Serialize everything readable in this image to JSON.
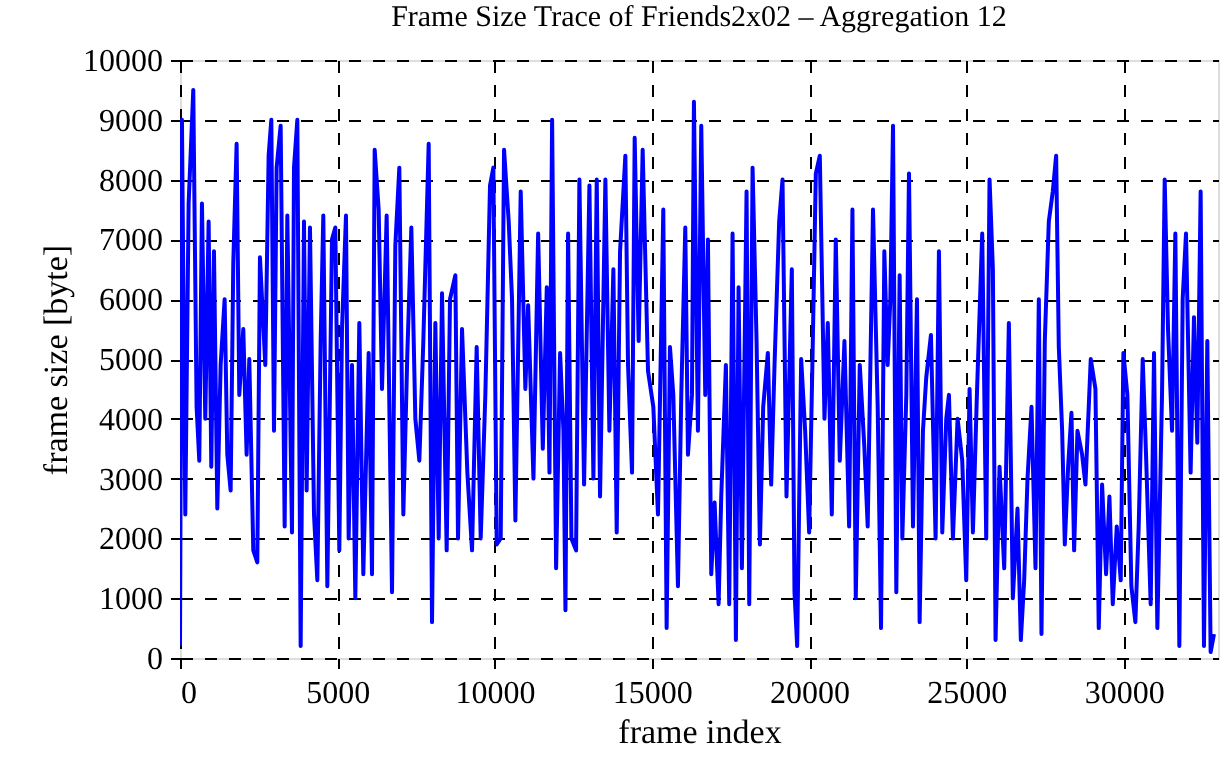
{
  "chart_data": {
    "type": "line",
    "title": "Frame Size Trace of Friends2x02 – Aggregation 12",
    "xlabel": "frame index",
    "ylabel": "frame size [byte]",
    "x": [
      0,
      62,
      168,
      274,
      422,
      528,
      613,
      698,
      804,
      910,
      995,
      1080,
      1186,
      1292,
      1419,
      1504,
      1610,
      1694,
      1800,
      1885,
      2012,
      2118,
      2203,
      2330,
      2458,
      2542,
      2712,
      2818,
      2903,
      2988,
      3072,
      3200,
      3327,
      3412,
      3560,
      3624,
      3730,
      3836,
      3942,
      4026,
      4132,
      4260,
      4366,
      4472,
      4556,
      4684,
      4832,
      4938,
      5065,
      5150,
      5277,
      5362,
      5468,
      5574,
      5701,
      5828,
      5998,
      6104,
      6189,
      6316,
      6422,
      6570,
      6740,
      6846,
      6973,
      7100,
      7228,
      7355,
      7482,
      7609,
      7736,
      7906,
      8012,
      8118,
      8224,
      8330,
      8478,
      8584,
      8754,
      8839,
      8966,
      9136,
      9284,
      9432,
      9560,
      9708,
      9856,
      9962,
      10068,
      10196,
      10302,
      10450,
      10556,
      10662,
      10832,
      10980,
      11068,
      11237,
      11386,
      11534,
      11661,
      11746,
      11830,
      11957,
      12084,
      12190,
      12254,
      12338,
      12444,
      12592,
      12698,
      12846,
      13016,
      13143,
      13249,
      13354,
      13524,
      13651,
      13778,
      13884,
      13990,
      14159,
      14244,
      14371,
      14455,
      14582,
      14709,
      14879,
      15048,
      15196,
      15365,
      15471,
      15577,
      15683,
      15831,
      15937,
      16064,
      16149,
      16276,
      16339,
      16466,
      16572,
      16699,
      16784,
      16890,
      16996,
      17123,
      17207,
      17355,
      17461,
      17567,
      17673,
      17758,
      17864,
      18012,
      18097,
      18203,
      18330,
      18436,
      18541,
      18689,
      18795,
      18901,
      19049,
      19155,
      19282,
      19451,
      19536,
      19621,
      19748,
      19875,
      20002,
      20108,
      20214,
      20341,
      20489,
      20595,
      20722,
      20849,
      20976,
      21124,
      21273,
      21378,
      21484,
      21611,
      21759,
      21863,
      22032,
      22181,
      22287,
      22392,
      22498,
      22583,
      22668,
      22773,
      22879,
      22964,
      23091,
      23176,
      23303,
      23430,
      23514,
      23620,
      23726,
      23874,
      24022,
      24128,
      24234,
      24361,
      24446,
      24573,
      24721,
      24869,
      24996,
      25102,
      25208,
      25335,
      25504,
      25631,
      25737,
      25843,
      25928,
      26055,
      26203,
      26351,
      26478,
      26626,
      26732,
      26838,
      26944,
      27071,
      27198,
      27304,
      27388,
      27494,
      27621,
      27748,
      27854,
      27939,
      28045,
      28129,
      28235,
      28341,
      28426,
      28532,
      28680,
      28786,
      28955,
      29103,
      29209,
      29315,
      29442,
      29548,
      29654,
      29781,
      29908,
      29992,
      30119,
      30246,
      30373,
      30479,
      30606,
      30712,
      30860,
      30966,
      31072,
      31220,
      31305,
      31411,
      31539,
      31644,
      31771,
      31877,
      31983,
      32130,
      32236,
      32342,
      32448,
      32554,
      32660,
      32766,
      32872
    ],
    "series": [
      {
        "color": "#0000ff",
        "values": [
          200,
          9000,
          2400,
          7600,
          9500,
          4200,
          3300,
          7600,
          4000,
          7300,
          3200,
          6800,
          2500,
          4900,
          6000,
          3400,
          2800,
          6600,
          8600,
          4400,
          5500,
          3400,
          5000,
          1800,
          1600,
          6700,
          4900,
          8400,
          9000,
          3800,
          8200,
          8900,
          2200,
          7400,
          2100,
          8200,
          9000,
          200,
          7300,
          2800,
          7200,
          2400,
          1300,
          5300,
          7400,
          1200,
          7000,
          7200,
          1800,
          5500,
          7400,
          2000,
          4900,
          1000,
          5600,
          1400,
          5100,
          1400,
          8500,
          7500,
          4500,
          7400,
          1100,
          6900,
          8200,
          2400,
          5100,
          7200,
          4000,
          3300,
          5300,
          8600,
          600,
          5600,
          2000,
          6100,
          1800,
          6000,
          6400,
          2000,
          5500,
          3100,
          1800,
          5200,
          2000,
          4400,
          7900,
          8200,
          1900,
          2000,
          8500,
          7300,
          6000,
          2300,
          7800,
          4500,
          5900,
          3000,
          7100,
          3500,
          6200,
          3100,
          9000,
          1500,
          5100,
          3800,
          800,
          7100,
          2000,
          1800,
          8000,
          2900,
          7900,
          3000,
          8000,
          2700,
          8000,
          3800,
          6500,
          2100,
          6800,
          8400,
          4900,
          3100,
          8700,
          5300,
          8500,
          4800,
          4200,
          2400,
          7500,
          500,
          5200,
          4400,
          1200,
          4400,
          7200,
          3400,
          4400,
          9300,
          3800,
          8900,
          4400,
          7000,
          1400,
          2600,
          900,
          2700,
          4900,
          900,
          7100,
          300,
          6200,
          1500,
          7800,
          900,
          8200,
          5300,
          1900,
          4200,
          5100,
          2900,
          4900,
          7300,
          8000,
          2700,
          6500,
          1100,
          200,
          5000,
          3800,
          2100,
          5000,
          8100,
          8400,
          4000,
          5600,
          2400,
          7000,
          3300,
          5300,
          2200,
          7500,
          1000,
          4900,
          3500,
          2200,
          7500,
          4200,
          500,
          6800,
          4900,
          6000,
          8900,
          1100,
          6400,
          2000,
          4400,
          8100,
          2200,
          6000,
          600,
          3800,
          4700,
          5400,
          2000,
          6800,
          2100,
          4000,
          4400,
          2000,
          4000,
          3300,
          1300,
          4500,
          2100,
          4400,
          7100,
          2000,
          8000,
          6500,
          300,
          3200,
          1500,
          5600,
          1000,
          2500,
          300,
          1300,
          3000,
          4200,
          1500,
          6000,
          400,
          5300,
          7300,
          7800,
          8400,
          5200,
          3800,
          1900,
          3200,
          4100,
          1800,
          3800,
          3400,
          2900,
          5000,
          4500,
          500,
          2900,
          1400,
          2700,
          900,
          2200,
          1300,
          5100,
          4400,
          1200,
          600,
          2200,
          5000,
          3400,
          900,
          5100,
          500,
          4400,
          8000,
          5500,
          3800,
          7100,
          200,
          6000,
          7100,
          3100,
          5700,
          3600,
          7800,
          200,
          5300,
          100,
          400
        ]
      }
    ],
    "xlim": [
      0,
      33000
    ],
    "ylim": [
      0,
      10000
    ],
    "xticks": [
      0,
      5000,
      10000,
      15000,
      20000,
      25000,
      30000
    ],
    "yticks": [
      0,
      1000,
      2000,
      3000,
      4000,
      5000,
      6000,
      7000,
      8000,
      9000,
      10000
    ],
    "grid": true,
    "line_style": "solid"
  }
}
